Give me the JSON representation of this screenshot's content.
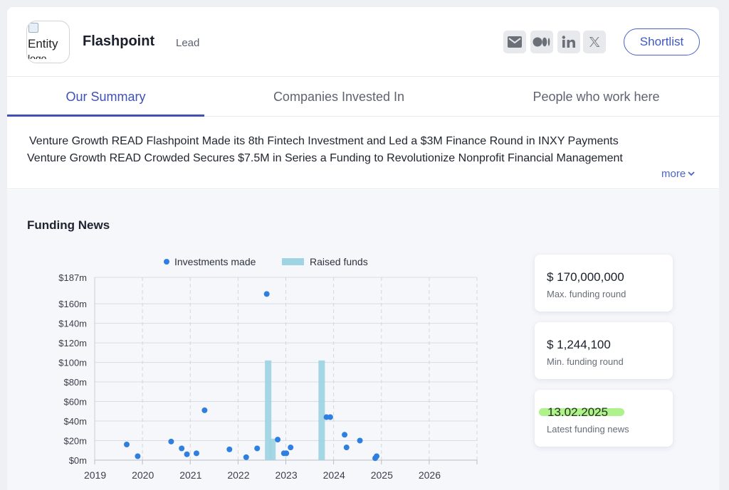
{
  "header": {
    "logo_alt": "Entity",
    "logo_alt_2": "logo",
    "company_name": "Flashpoint",
    "role": "Lead",
    "shortlist_label": "Shortlist",
    "social_icons": [
      "email-icon",
      "medium-icon",
      "linkedin-icon",
      "x-icon"
    ]
  },
  "tabs": [
    {
      "label": "Our Summary",
      "active": true
    },
    {
      "label": "Companies Invested In",
      "active": false
    },
    {
      "label": "People who work here",
      "active": false
    }
  ],
  "summary": {
    "lines": [
      "Venture Growth READ Flashpoint Made its 8th Fintech Investment and Led a $3M Finance Round in INXY Payments",
      "Venture Growth READ Crowded Secures $7.5M in Series a Funding to Revolutionize Nonprofit Financial Management"
    ],
    "more_label": "more"
  },
  "funding": {
    "title": "Funding News",
    "stats": [
      {
        "value": "$ 170,000,000",
        "label": "Max. funding round"
      },
      {
        "value": "$ 1,244,100",
        "label": "Min. funding round"
      },
      {
        "value": "13.02.2025",
        "label": "Latest funding news",
        "highlight": true
      }
    ]
  },
  "colors": {
    "accent": "#3f51b5",
    "point": "#2f7fe0",
    "bar": "#9fd4e3",
    "highlight": "#aef28c"
  },
  "chart_data": {
    "type": "scatter",
    "legend": [
      "Investments made",
      "Raised funds"
    ],
    "legend_placement": "top-center",
    "x_ticks": [
      "2019",
      "2020",
      "2021",
      "2022",
      "2023",
      "2024",
      "2025",
      "2026"
    ],
    "y_ticks": [
      "$0m",
      "$20m",
      "$40m",
      "$60m",
      "$80m",
      "$100m",
      "$120m",
      "$140m",
      "$160m",
      "$187m"
    ],
    "y_tick_values": [
      0,
      20,
      40,
      60,
      80,
      100,
      120,
      140,
      160,
      187
    ],
    "xlim": [
      2019.0,
      2027.0
    ],
    "ylim": [
      0,
      187
    ],
    "grid": true,
    "series": [
      {
        "name": "Investments made",
        "type": "scatter",
        "points": [
          [
            2019.67,
            16
          ],
          [
            2019.9,
            4
          ],
          [
            2020.6,
            19
          ],
          [
            2020.82,
            12
          ],
          [
            2020.93,
            6
          ],
          [
            2021.13,
            7
          ],
          [
            2021.3,
            51
          ],
          [
            2021.82,
            11
          ],
          [
            2022.17,
            3
          ],
          [
            2022.4,
            12
          ],
          [
            2022.6,
            170
          ],
          [
            2022.83,
            21
          ],
          [
            2022.96,
            7
          ],
          [
            2023.01,
            7
          ],
          [
            2023.1,
            13
          ],
          [
            2023.85,
            44
          ],
          [
            2023.93,
            44
          ],
          [
            2024.23,
            26
          ],
          [
            2024.27,
            13
          ],
          [
            2024.55,
            20
          ],
          [
            2024.87,
            2
          ],
          [
            2024.9,
            4
          ]
        ]
      },
      {
        "name": "Raised funds",
        "type": "bar",
        "points": [
          [
            2022.63,
            102
          ],
          [
            2022.72,
            22
          ],
          [
            2023.75,
            102
          ]
        ]
      }
    ]
  }
}
